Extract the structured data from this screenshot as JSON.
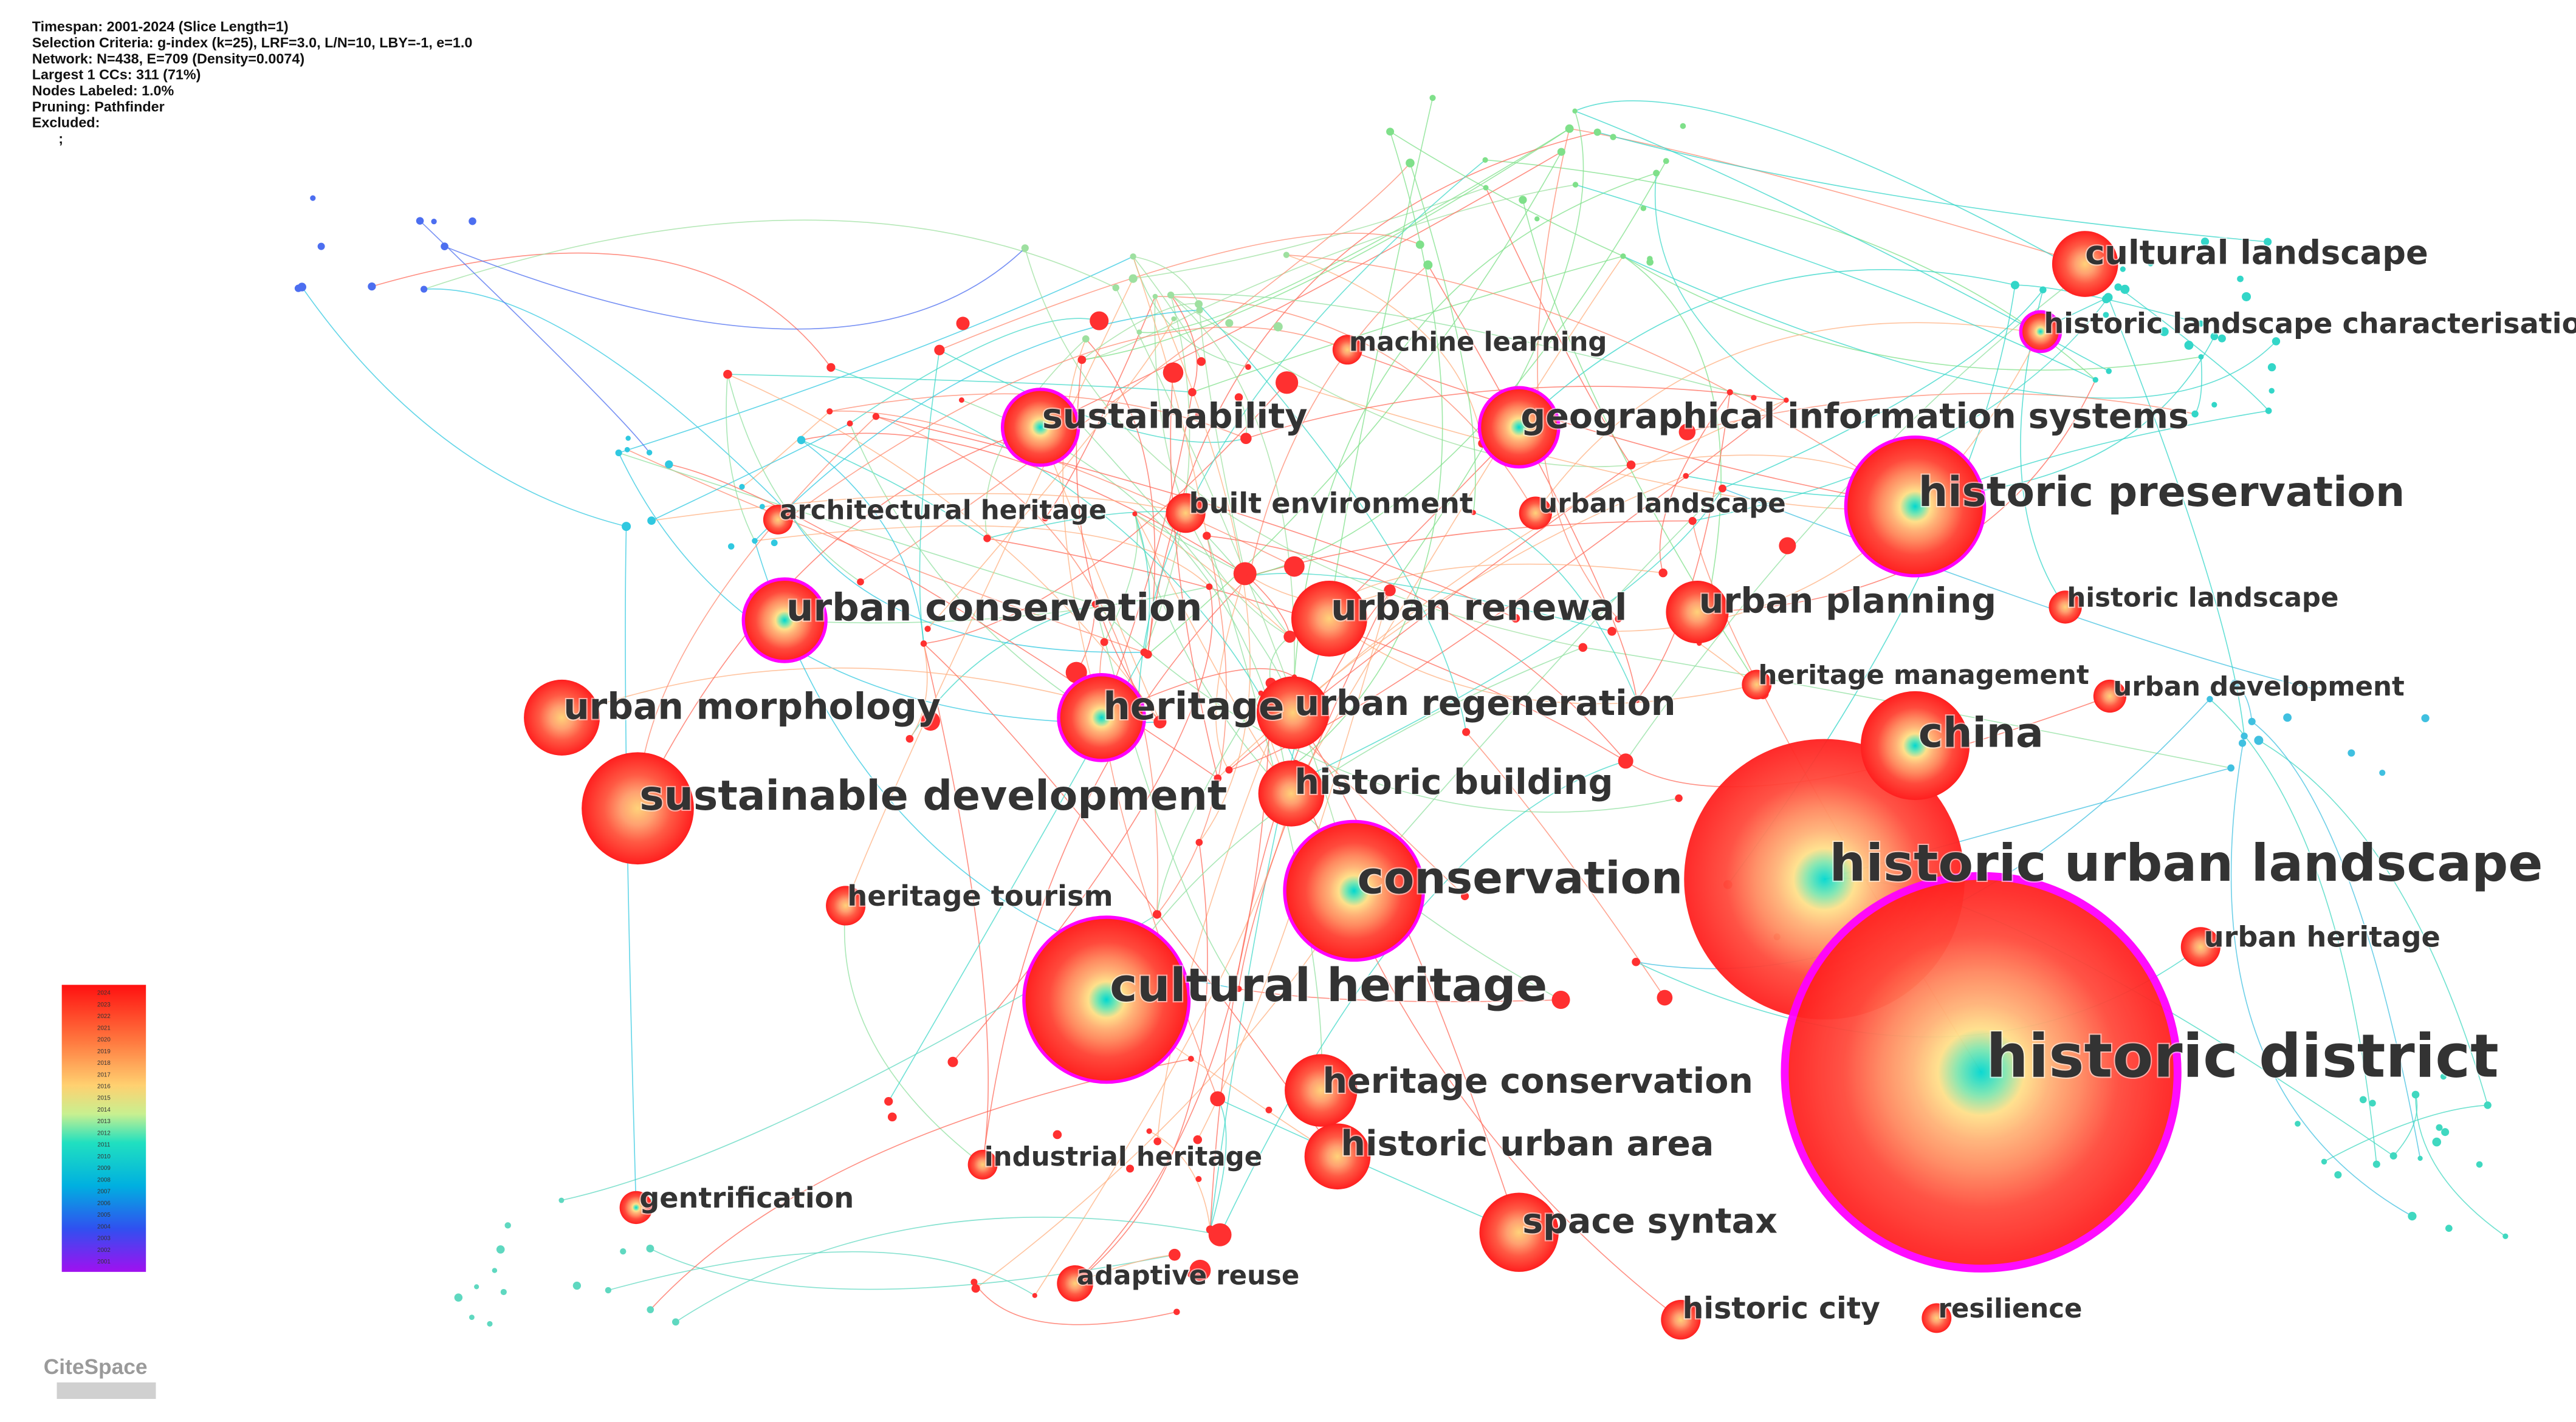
{
  "header": {
    "lines": [
      "Timespan: 2001-2024 (Slice Length=1)",
      "Selection Criteria: g-index (k=25), LRF=3.0, L/N=10, LBY=-1, e=1.0",
      "Network: N=438, E=709 (Density=0.0074)",
      "Largest 1 CCs: 311 (71%)",
      "Nodes Labeled: 1.0%",
      "Pruning: Pathfinder",
      "Excluded:",
      ";"
    ]
  },
  "nodes": [
    {
      "label": "historic urban landscape"
    },
    {
      "label": "historic district"
    },
    {
      "label": "cultural heritage"
    },
    {
      "label": "conservation"
    },
    {
      "label": "sustainable development"
    },
    {
      "label": "historic preservation"
    },
    {
      "label": "china"
    },
    {
      "label": "urban conservation"
    },
    {
      "label": "heritage"
    },
    {
      "label": "urban morphology"
    },
    {
      "label": "urban renewal"
    },
    {
      "label": "urban regeneration"
    },
    {
      "label": "historic building"
    },
    {
      "label": "urban planning"
    },
    {
      "label": "sustainability"
    },
    {
      "label": "geographical information systems"
    },
    {
      "label": "cultural landscape"
    },
    {
      "label": "historic landscape characterisation"
    },
    {
      "label": "space syntax"
    },
    {
      "label": "heritage conservation"
    },
    {
      "label": "historic urban area"
    },
    {
      "label": "urban heritage"
    },
    {
      "label": "heritage tourism"
    },
    {
      "label": "gentrification"
    },
    {
      "label": "historic city"
    },
    {
      "label": "resilience"
    },
    {
      "label": "adaptive reuse"
    },
    {
      "label": "industrial heritage"
    },
    {
      "label": "heritage management"
    },
    {
      "label": "urban development"
    },
    {
      "label": "historic landscape"
    },
    {
      "label": "urban landscape"
    },
    {
      "label": "built environment"
    },
    {
      "label": "architectural heritage"
    },
    {
      "label": "machine learning"
    }
  ],
  "legend": {
    "years": [
      "2024",
      "2023",
      "2022",
      "2021",
      "2020",
      "2019",
      "2018",
      "2017",
      "2016",
      "2015",
      "2014",
      "2013",
      "2012",
      "2011",
      "2010",
      "2009",
      "2008",
      "2007",
      "2006",
      "2005",
      "2004",
      "2003",
      "2002",
      "2001"
    ]
  },
  "logo": "CiteSpace"
}
